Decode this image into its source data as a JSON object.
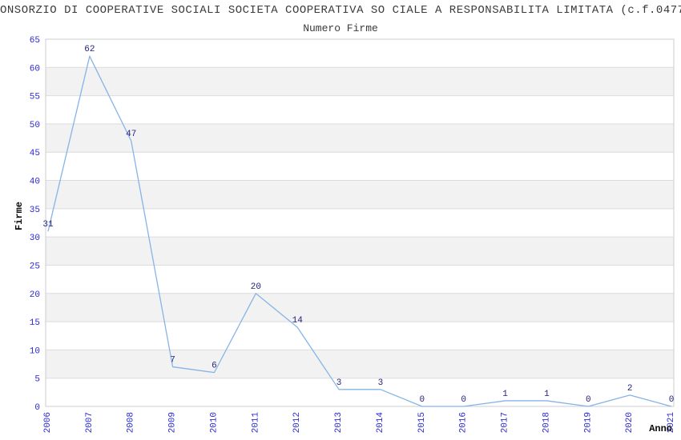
{
  "header": {
    "title": "ONSORZIO DI COOPERATIVE SOCIALI SOCIETA COOPERATIVA SO CIALE A RESPONSABILITA LIMITATA (c.f.0477",
    "subtitle": "Numero Firme"
  },
  "chart_data": {
    "type": "line",
    "title": "ONSORZIO DI COOPERATIVE SOCIALI SOCIETA COOPERATIVA SO CIALE A RESPONSABILITA LIMITATA (c.f.0477",
    "subtitle": "Numero Firme",
    "xlabel": "Anno",
    "ylabel": "Firme",
    "categories": [
      "2006",
      "2007",
      "2008",
      "2009",
      "2010",
      "2011",
      "2012",
      "2013",
      "2014",
      "2015",
      "2016",
      "2017",
      "2018",
      "2019",
      "2020",
      "2021"
    ],
    "values": [
      31,
      62,
      47,
      7,
      6,
      20,
      14,
      3,
      3,
      0,
      0,
      1,
      1,
      0,
      2,
      0
    ],
    "ylim": [
      0,
      65
    ],
    "ytick_step": 5,
    "yticks": [
      0,
      5,
      10,
      15,
      20,
      25,
      30,
      35,
      40,
      45,
      50,
      55,
      60,
      65
    ],
    "grid": "horizontal-gridlines-with-alternating-bands",
    "legend": "none",
    "markers": "none",
    "data_labels_shown": true,
    "colors": {
      "line": "#85b4e6",
      "tick_label": "#2828d4",
      "data_label": "#23237c",
      "band_fill": "#f2f2f2",
      "gridline": "#dcdcdc",
      "frame": "#cccccc",
      "title_text": "#3b3b3b",
      "axis_title_text": "#0a0a0a",
      "background": "#ffffff"
    }
  }
}
